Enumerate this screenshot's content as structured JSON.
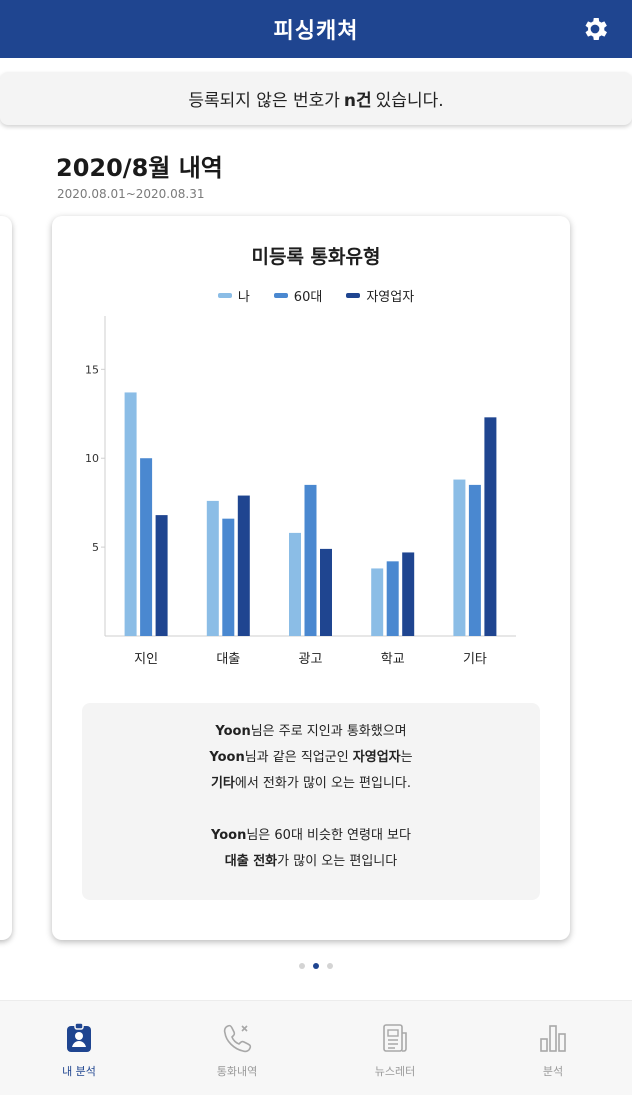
{
  "header": {
    "title": "피싱캐쳐",
    "settings_icon": "gear-icon"
  },
  "notice": {
    "prefix": "등록되지 않은 번호가",
    "count": "n건",
    "suffix": "있습니다."
  },
  "section": {
    "title": "2020/8월 내역",
    "range": "2020.08.01~2020.08.31"
  },
  "chart_data": {
    "type": "bar",
    "title": "미등록 통화유형",
    "categories": [
      "지인",
      "대출",
      "광고",
      "학교",
      "기타"
    ],
    "series": [
      {
        "name": "나",
        "color": "#8bbde6",
        "values": [
          13.7,
          7.6,
          5.8,
          3.8,
          8.8
        ]
      },
      {
        "name": "60대",
        "color": "#4a88d0",
        "values": [
          10.0,
          6.6,
          8.5,
          4.2,
          8.5
        ]
      },
      {
        "name": "자영업자",
        "color": "#1f4590",
        "values": [
          6.8,
          7.9,
          4.9,
          4.7,
          12.3
        ]
      }
    ],
    "yticks": [
      5,
      10,
      15
    ],
    "ylim": [
      0,
      18
    ],
    "grid": false,
    "legend_position": "top"
  },
  "summary": {
    "l1_name": "Yoon",
    "l1_rest": "님은 주로 지인과 통화했으며",
    "l2_name": "Yoon",
    "l2_mid": "님과 같은 직업군인 ",
    "l2_bold": "자영업자",
    "l2_end": "는",
    "l3_bold": "기타",
    "l3_rest": "에서 전화가 많이 오는 편입니다.",
    "l4_name": "Yoon",
    "l4_rest": "님은 60대 비슷한 연령대 보다",
    "l5_bold": "대출 전화",
    "l5_rest": "가 많이 오는 편입니다"
  },
  "pager": {
    "count": 3,
    "active": 1
  },
  "tabs": [
    {
      "label": "내 분석",
      "icon": "profile-icon",
      "active": true
    },
    {
      "label": "통화내역",
      "icon": "phone-icon",
      "active": false
    },
    {
      "label": "뉴스레터",
      "icon": "newsletter-icon",
      "active": false
    },
    {
      "label": "분석",
      "icon": "bar-chart-icon",
      "active": false
    }
  ]
}
